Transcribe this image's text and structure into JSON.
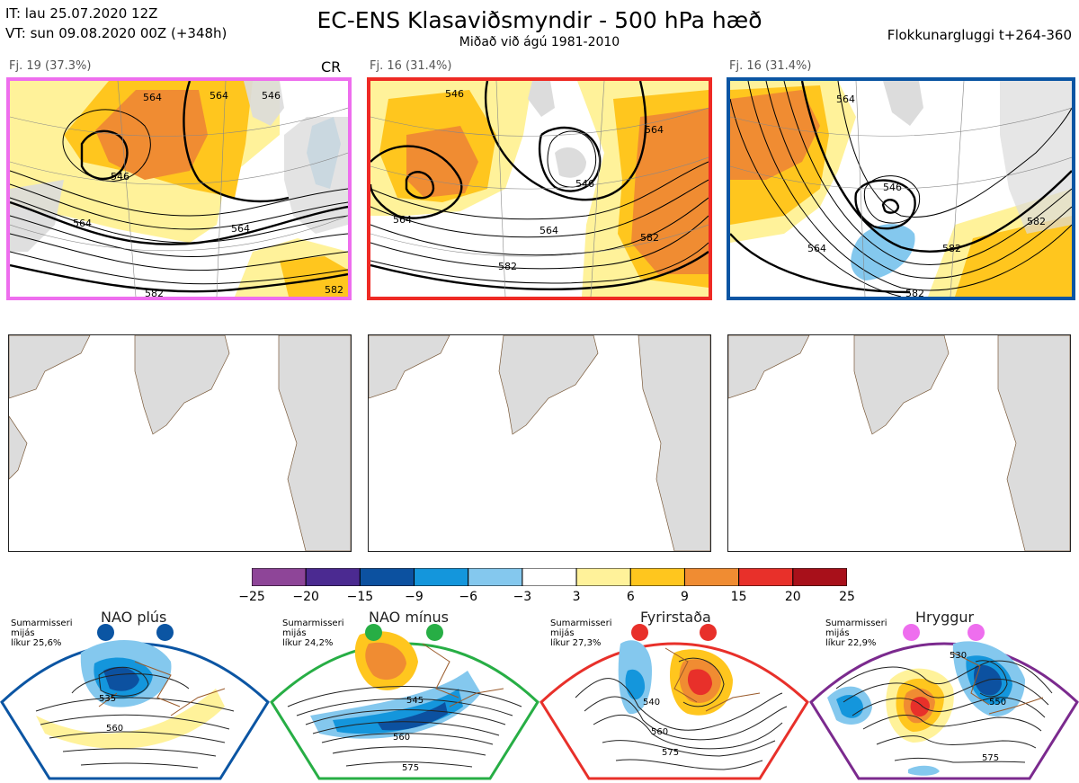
{
  "header": {
    "it_line": "IT: lau 25.07.2020 12Z",
    "vt_line": "VT: sun 09.08.2020 00Z  (+348h)",
    "title": "EC-ENS Klasaviðsmyndir - 500 hPa hæð",
    "subtitle": "Miðað við ágú 1981-2010",
    "window": "Flokkunargluggi t+264-360"
  },
  "top_panels": [
    {
      "label": "Fj. 19 (37.3%)",
      "tag": "CR",
      "border_color": "#ee6eee",
      "contour_labels": [
        "564",
        "564",
        "546",
        "546",
        "564",
        "564",
        "582",
        "582"
      ]
    },
    {
      "label": "Fj. 16 (31.4%)",
      "tag": "",
      "border_color": "#ee2a24",
      "contour_labels": [
        "546",
        "564",
        "546",
        "564",
        "564",
        "582",
        "582"
      ]
    },
    {
      "label": "Fj. 16 (31.4%)",
      "tag": "",
      "border_color": "#0b55a3",
      "contour_labels": [
        "564",
        "546",
        "564",
        "582",
        "582",
        "582"
      ]
    }
  ],
  "colorbar": {
    "ticks": [
      "−25",
      "−20",
      "−15",
      "−9",
      "−6",
      "−3",
      "3",
      "6",
      "9",
      "15",
      "20",
      "25"
    ],
    "colors": [
      "#8e4598",
      "#4b2a91",
      "#0c51a0",
      "#1496dc",
      "#84c8ee",
      "#ffffff",
      "#fff29a",
      "#ffc61e",
      "#f08c32",
      "#e8302a",
      "#a8101a"
    ]
  },
  "regimes": [
    {
      "name": "NAO plús",
      "season": "Sumarmisseri",
      "freq_word": "mijás",
      "prob": "líkur 25,6%",
      "color": "#0b55a3",
      "contour_labels": [
        "535",
        "560"
      ]
    },
    {
      "name": "NAO mínus",
      "season": "Sumarmisseri",
      "freq_word": "mijás",
      "prob": "líkur 24,2%",
      "color": "#27ae45",
      "contour_labels": [
        "545",
        "560",
        "575"
      ]
    },
    {
      "name": "Fyrirstaða",
      "season": "Sumarmisseri",
      "freq_word": "mijás",
      "prob": "líkur 27,3%",
      "color": "#e8302a",
      "contour_labels": [
        "540",
        "560",
        "575"
      ]
    },
    {
      "name": "Hryggur",
      "season": "Sumarmisseri",
      "freq_word": "mijás",
      "prob": "líkur 22,9%",
      "color": "#ee6eee",
      "contour_labels": [
        "530",
        "550",
        "575"
      ]
    }
  ],
  "bottom_frame_color": "#7b2a8e"
}
